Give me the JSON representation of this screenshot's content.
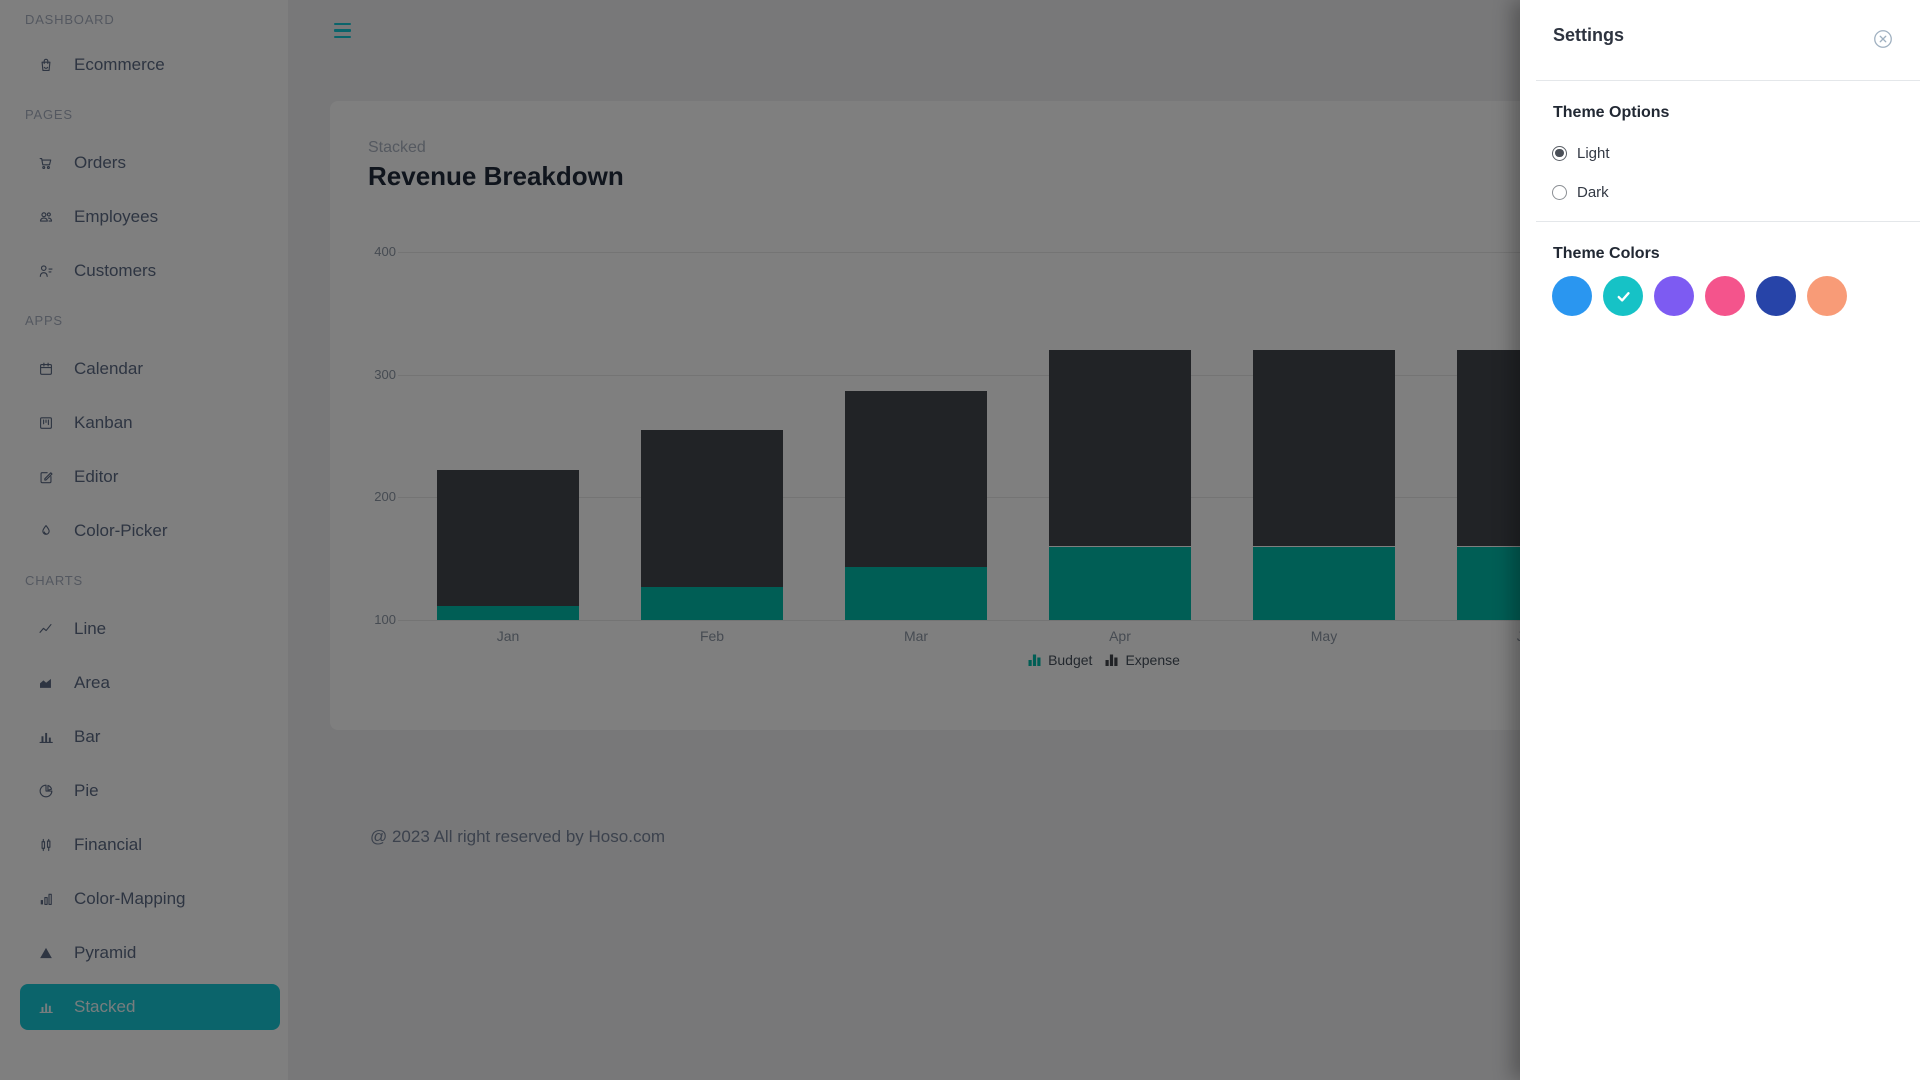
{
  "theme": {
    "accent": "#16c8d6",
    "overlay": "rgba(0,0,0,0.5)"
  },
  "topbar": {
    "menu_icon": "hamburger-icon"
  },
  "sidebar": {
    "sections": [
      {
        "label": "DASHBOARD",
        "items": [
          {
            "label": "Ecommerce",
            "icon": "shopping-bag-icon",
            "active": false
          }
        ]
      },
      {
        "label": "PAGES",
        "items": [
          {
            "label": "Orders",
            "icon": "cart-icon",
            "active": false
          },
          {
            "label": "Employees",
            "icon": "people-icon",
            "active": false
          },
          {
            "label": "Customers",
            "icon": "person-list-icon",
            "active": false
          }
        ]
      },
      {
        "label": "APPS",
        "items": [
          {
            "label": "Calendar",
            "icon": "calendar-icon",
            "active": false
          },
          {
            "label": "Kanban",
            "icon": "kanban-icon",
            "active": false
          },
          {
            "label": "Editor",
            "icon": "editor-icon",
            "active": false
          },
          {
            "label": "Color-Picker",
            "icon": "droplet-icon",
            "active": false
          }
        ]
      },
      {
        "label": "CHARTS",
        "items": [
          {
            "label": "Line",
            "icon": "line-chart-icon",
            "active": false
          },
          {
            "label": "Area",
            "icon": "area-chart-icon",
            "active": false
          },
          {
            "label": "Bar",
            "icon": "bar-chart-icon",
            "active": false
          },
          {
            "label": "Pie",
            "icon": "pie-chart-icon",
            "active": false
          },
          {
            "label": "Financial",
            "icon": "candlestick-icon",
            "active": false
          },
          {
            "label": "Color-Mapping",
            "icon": "color-bars-icon",
            "active": false
          },
          {
            "label": "Pyramid",
            "icon": "pyramid-icon",
            "active": false
          },
          {
            "label": "Stacked",
            "icon": "stacked-bar-icon",
            "active": true
          }
        ]
      }
    ]
  },
  "chart_data": {
    "type": "bar",
    "stacked": true,
    "subtitle": "Stacked",
    "title": "Revenue Breakdown",
    "categories": [
      "Jan",
      "Feb",
      "Mar",
      "Apr",
      "May",
      "Jun"
    ],
    "series": [
      {
        "name": "Budget",
        "color": "#00bcaa",
        "values": [
          111.1,
          127.3,
          143.4,
          159.9,
          159.9,
          159.9
        ]
      },
      {
        "name": "Expense",
        "color": "#42464c",
        "values": [
          111.1,
          127.3,
          143.4,
          159.9,
          159.9,
          159.9
        ]
      }
    ],
    "xlabel": "",
    "ylabel": "",
    "ylim": [
      100,
      400
    ],
    "yticks": [
      100,
      200,
      300,
      400
    ],
    "grid": "horizontal",
    "legend_position": "bottom"
  },
  "footer": {
    "copyright": "@ 2023 All right reserved by Hoso.com"
  },
  "settings": {
    "title": "Settings",
    "close_icon": "close-icon",
    "theme_options_heading": "Theme Options",
    "options": [
      {
        "label": "Light",
        "selected": true
      },
      {
        "label": "Dark",
        "selected": false
      }
    ],
    "theme_colors_heading": "Theme Colors",
    "colors": [
      {
        "name": "blue",
        "hex": "#2a96f0",
        "selected": false
      },
      {
        "name": "teal",
        "hex": "#16c2c6",
        "selected": true
      },
      {
        "name": "purple",
        "hex": "#7d5bf2",
        "selected": false
      },
      {
        "name": "pink",
        "hex": "#f4548c",
        "selected": false
      },
      {
        "name": "navy",
        "hex": "#2744a8",
        "selected": false
      },
      {
        "name": "orange",
        "hex": "#f89b77",
        "selected": false
      }
    ]
  }
}
